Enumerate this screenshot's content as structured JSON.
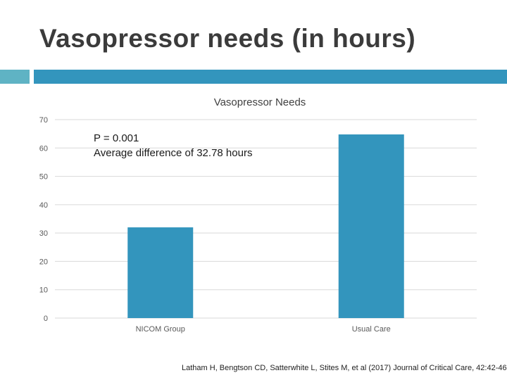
{
  "slide": {
    "title": "Vasopressor needs (in hours)",
    "citation": "Latham H, Bengtson CD, Satterwhite L, Stites M, et al (2017) Journal of Critical Care, 42:42-46"
  },
  "colors": {
    "accent_light": "#5fb3c4",
    "accent_dark": "#3395bd",
    "bar": "#3395bd",
    "grid": "#d9d9d9",
    "text": "#595959"
  },
  "chart_data": {
    "type": "bar",
    "title": "Vasopressor Needs",
    "categories": [
      "NICOM Group",
      "Usual Care"
    ],
    "values": [
      32,
      64.78
    ],
    "xlabel": "",
    "ylabel": "",
    "ylim": [
      0,
      70
    ],
    "yticks": [
      0,
      10,
      20,
      30,
      40,
      50,
      60,
      70
    ],
    "grid": true,
    "legend": "none",
    "annotations": [
      "P = 0.001",
      "Average difference of 32.78 hours"
    ]
  }
}
